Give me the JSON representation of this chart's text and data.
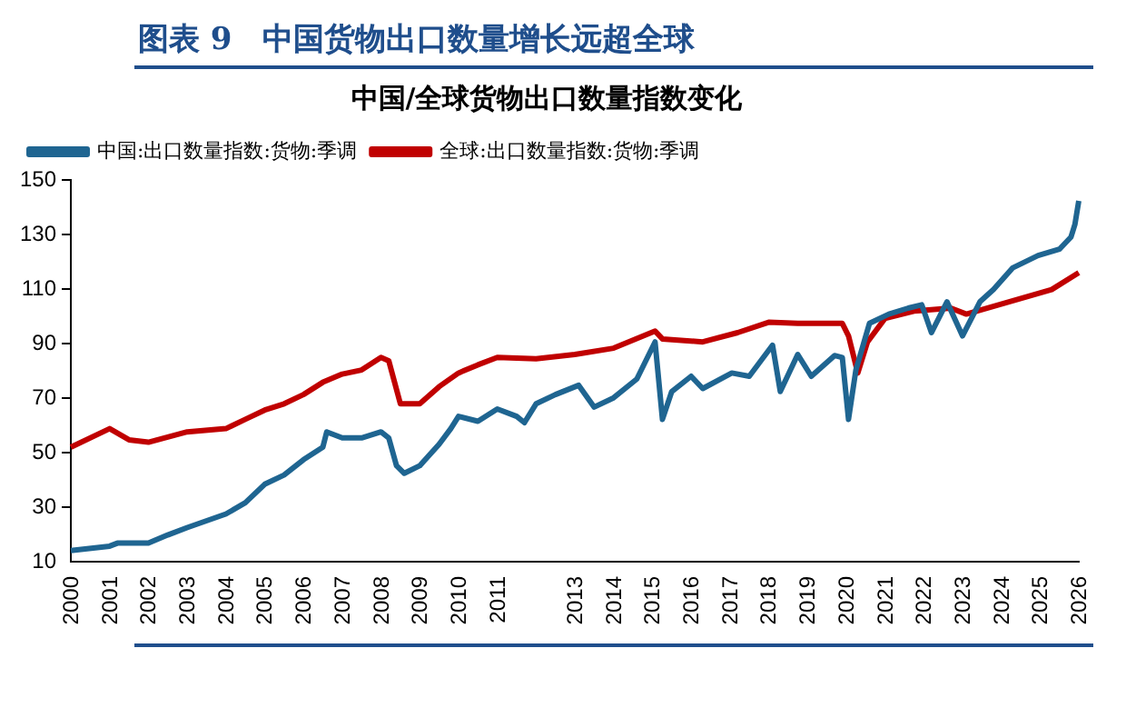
{
  "chart_data": {
    "type": "line",
    "title": "图表 9　中国货物出口数量增长远超全球",
    "subtitle": "中国/全球货物出口数量指数变化",
    "series": [
      {
        "name": "中国:出口数量指数:货物:季调",
        "color": "#1f6591",
        "x": [
          2000,
          2001,
          2001.2,
          2002,
          2002.5,
          2003,
          2004,
          2004.5,
          2005,
          2005.5,
          2006,
          2006.5,
          2006.6,
          2007,
          2007.5,
          2008,
          2008.2,
          2008.4,
          2008.6,
          2009,
          2009.5,
          2009.8,
          2010,
          2010.5,
          2011,
          2011.5,
          2011.7,
          2012,
          2012.5,
          2013.1,
          2013.5,
          2014,
          2014.6,
          2015.07,
          2015.26,
          2015.5,
          2016,
          2016.3,
          2017.05,
          2017.5,
          2018.1,
          2018.3,
          2018.75,
          2019.1,
          2019.7,
          2019.9,
          2020.06,
          2020.25,
          2020.6,
          2021.1,
          2021.6,
          2021.95,
          2022.2,
          2022.6,
          2023,
          2023.45,
          2023.8,
          2024.3,
          2024.95,
          2025.5,
          2025.8,
          2025.9,
          2026
        ],
        "values": [
          14.1,
          15.7,
          16.8,
          16.8,
          19.8,
          22.5,
          27.5,
          31.6,
          38.4,
          41.8,
          47.4,
          52,
          57.6,
          55.4,
          55.4,
          57.6,
          55.4,
          45.2,
          42.4,
          45.2,
          53.1,
          58.8,
          63.3,
          61.5,
          66,
          63.3,
          61,
          67.9,
          71.3,
          74.7,
          66.7,
          70.1,
          77,
          90.6,
          62.2,
          72.4,
          78,
          73.5,
          79.2,
          78,
          89.4,
          72.4,
          86,
          78,
          85.6,
          84.9,
          62.2,
          80.3,
          97.4,
          100.8,
          103,
          104.2,
          94,
          105.3,
          92.8,
          105.3,
          109.8,
          117.8,
          122.3,
          124.6,
          129.1,
          133.7,
          142.3
        ]
      },
      {
        "name": "全球:出口数量指数:货物:季调",
        "color": "#c00000",
        "x": [
          2000,
          2001,
          2001.5,
          2002,
          2003,
          2004,
          2004.5,
          2005,
          2005.5,
          2006,
          2006.5,
          2007,
          2007.5,
          2008,
          2008.2,
          2008.5,
          2009,
          2009.5,
          2010,
          2010.5,
          2011,
          2012,
          2013,
          2014,
          2015.07,
          2015.26,
          2016.3,
          2017.2,
          2018,
          2018.75,
          2019.9,
          2020.06,
          2020.3,
          2020.55,
          2021,
          2021.75,
          2022.7,
          2023.1,
          2024.2,
          2025.3,
          2026
        ],
        "values": [
          52,
          58.8,
          54.7,
          53.8,
          57.6,
          58.8,
          62.2,
          65.6,
          67.9,
          71.3,
          75.8,
          78.8,
          80.3,
          84.9,
          83.7,
          67.9,
          67.9,
          74.2,
          79.2,
          82.2,
          84.9,
          84.4,
          86,
          88.3,
          94.6,
          91.7,
          90.6,
          94,
          97.8,
          97.4,
          97.4,
          92.8,
          79.2,
          90.6,
          99.2,
          101.9,
          103,
          100.8,
          105.3,
          109.8,
          116
        ]
      }
    ],
    "xlim": [
      2000,
      2026
    ],
    "xticks": [
      2000,
      2001,
      2002,
      2003,
      2004,
      2005,
      2006,
      2007,
      2008,
      2009,
      2010,
      2011,
      2013,
      2014,
      2015,
      2016,
      2017,
      2018,
      2019,
      2020,
      2021,
      2022,
      2023,
      2024,
      2025,
      2026
    ],
    "ylim": [
      10,
      150
    ],
    "yticks": [
      10,
      30,
      50,
      70,
      90,
      110,
      130,
      150
    ],
    "legend": "top",
    "grid": false,
    "line_style": "solid",
    "marker": "none"
  }
}
